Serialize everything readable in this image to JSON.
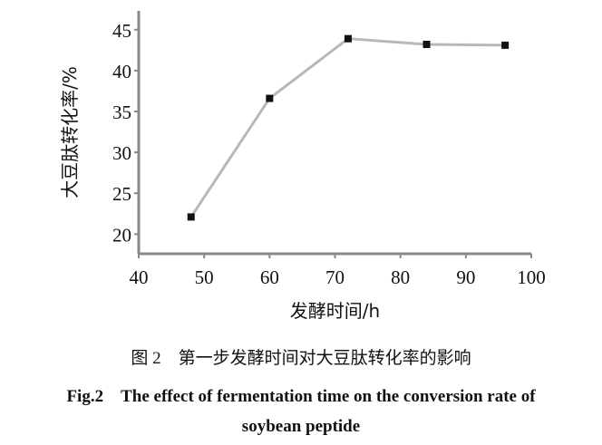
{
  "chart_data": {
    "type": "line",
    "xlabel": "发酵时间/h",
    "ylabel": "大豆肽转化率/%",
    "xlim": [
      40,
      100
    ],
    "ylim": [
      17.6,
      47.3
    ],
    "xticks": [
      40,
      50,
      60,
      70,
      80,
      90,
      100
    ],
    "yticks": [
      20,
      25,
      30,
      35,
      40,
      45
    ],
    "grid": false,
    "x": [
      48,
      60,
      72,
      84,
      96
    ],
    "values": [
      22.1,
      36.6,
      43.9,
      43.2,
      43.1
    ],
    "line_color": "#b8b8b8",
    "marker_color": "#111111",
    "axis_color": "#888888"
  },
  "caption": {
    "cn": "图 2　第一步发酵时间对大豆肽转化率的影响",
    "en_line1": "Fig.2　The effect of fermentation time on the conversion rate of",
    "en_line2": "soybean peptide"
  }
}
